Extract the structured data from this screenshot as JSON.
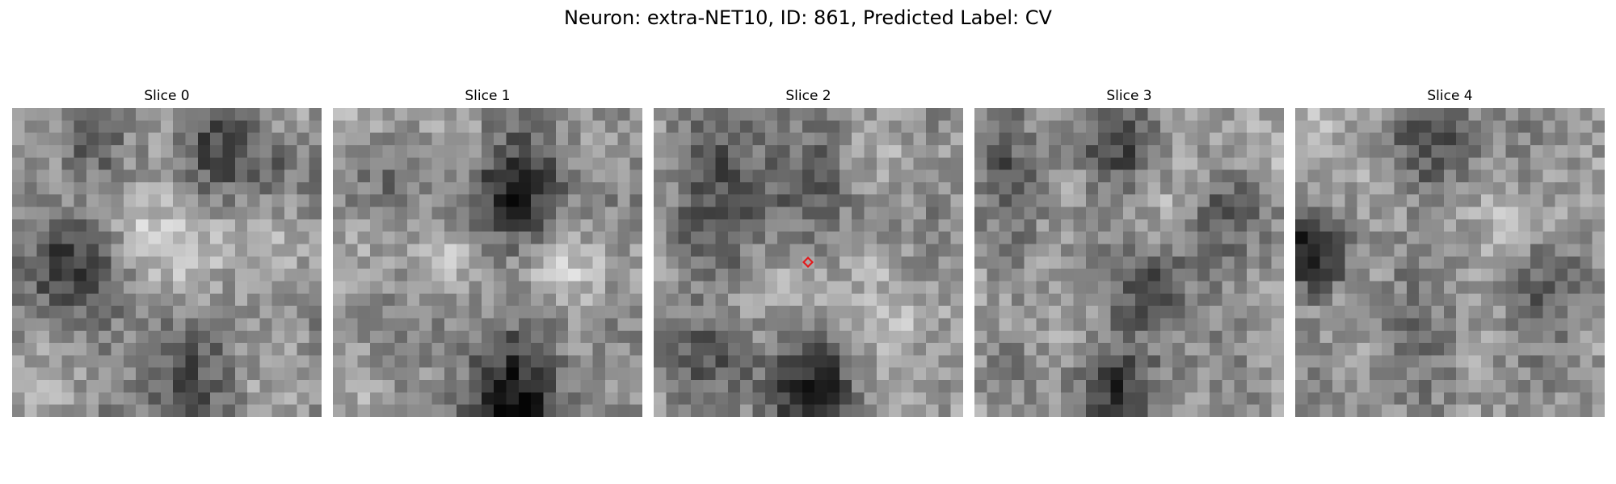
{
  "figure": {
    "title": "Neuron: extra-NET10, ID: 861, Predicted Label: CV"
  },
  "slices": [
    {
      "label": "Slice 0",
      "has_marker": false
    },
    {
      "label": "Slice 1",
      "has_marker": false
    },
    {
      "label": "Slice 2",
      "has_marker": true
    },
    {
      "label": "Slice 3",
      "has_marker": false
    },
    {
      "label": "Slice 4",
      "has_marker": false
    }
  ],
  "image": {
    "colormap": "grayscale",
    "grid": "25x25"
  },
  "marker": {
    "shape": "diamond",
    "color": "#e31a1c",
    "fill": "none",
    "icon": "diamond-marker-icon"
  }
}
